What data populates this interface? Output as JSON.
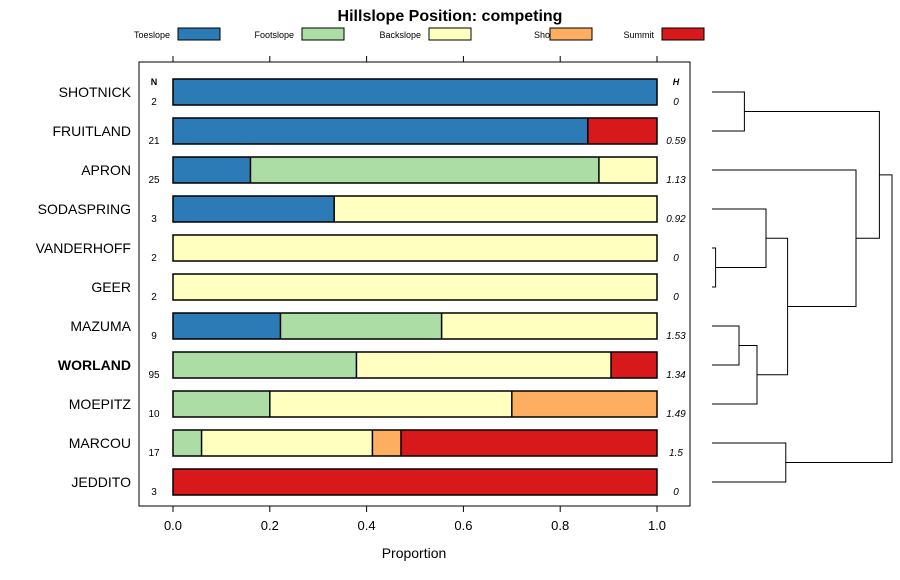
{
  "chart_data": {
    "type": "bar",
    "subtype": "stacked-horizontal-proportion",
    "title": "Hillslope Position: competing",
    "xlabel": "Proportion",
    "ylabel": "",
    "xlim": [
      0,
      1
    ],
    "xticks": [
      "0.0",
      "0.2",
      "0.4",
      "0.6",
      "0.8",
      "1.0"
    ],
    "n_header": "N",
    "h_header": "H",
    "highlighted_series": "WORLAND",
    "legend": [
      {
        "name": "Toeslope",
        "color": "#2c7bb6"
      },
      {
        "name": "Footslope",
        "color": "#abdda4"
      },
      {
        "name": "Backslope",
        "color": "#ffffbf"
      },
      {
        "name": "Shoulder",
        "color": "#fdae61"
      },
      {
        "name": "Summit",
        "color": "#d7191c"
      }
    ],
    "categories": [
      "SHOTNICK",
      "FRUITLAND",
      "APRON",
      "SODASPRING",
      "VANDERHOFF",
      "GEER",
      "MAZUMA",
      "WORLAND",
      "MOEPITZ",
      "MARCOU",
      "JEDDITO"
    ],
    "n": [
      "2",
      "21",
      "25",
      "3",
      "2",
      "2",
      "9",
      "95",
      "10",
      "17",
      "3"
    ],
    "h": [
      "0",
      "0.59",
      "1.13",
      "0.92",
      "0",
      "0",
      "1.53",
      "1.34",
      "1.49",
      "1.5",
      "0"
    ],
    "series": [
      {
        "name": "Toeslope",
        "values": [
          1.0,
          0.857,
          0.16,
          0.333,
          0,
          0,
          0.222,
          0,
          0,
          0,
          0
        ]
      },
      {
        "name": "Footslope",
        "values": [
          0,
          0,
          0.72,
          0,
          0,
          0,
          0.333,
          0.379,
          0.2,
          0.059,
          0
        ]
      },
      {
        "name": "Backslope",
        "values": [
          0,
          0,
          0.12,
          0.667,
          1.0,
          1.0,
          0.445,
          0.526,
          0.5,
          0.353,
          0
        ]
      },
      {
        "name": "Shoulder",
        "values": [
          0,
          0,
          0,
          0,
          0,
          0,
          0,
          0,
          0.3,
          0.059,
          0
        ]
      },
      {
        "name": "Summit",
        "values": [
          0,
          0.143,
          0,
          0,
          0,
          0,
          0,
          0.095,
          0,
          0.529,
          1.0
        ]
      }
    ],
    "dendrogram": {
      "leaves": [
        "SHOTNICK",
        "FRUITLAND",
        "APRON",
        "SODASPRING",
        "VANDERHOFF",
        "GEER",
        "MAZUMA",
        "WORLAND",
        "MOEPITZ",
        "MARCOU",
        "JEDDITO"
      ],
      "merges": [
        {
          "a": "L0",
          "b": "L1",
          "height": 0.18
        },
        {
          "a": "L4",
          "b": "L5",
          "height": 0.02
        },
        {
          "a": "L3",
          "b": "M1",
          "height": 0.3
        },
        {
          "a": "L6",
          "b": "L7",
          "height": 0.15
        },
        {
          "a": "M3",
          "b": "L8",
          "height": 0.25
        },
        {
          "a": "M2",
          "b": "M4",
          "height": 0.42
        },
        {
          "a": "L2",
          "b": "M5",
          "height": 0.8
        },
        {
          "a": "M0",
          "b": "M6",
          "height": 0.93
        },
        {
          "a": "L9",
          "b": "L10",
          "height": 0.41
        },
        {
          "a": "M7",
          "b": "M8",
          "height": 1.0
        }
      ]
    }
  }
}
